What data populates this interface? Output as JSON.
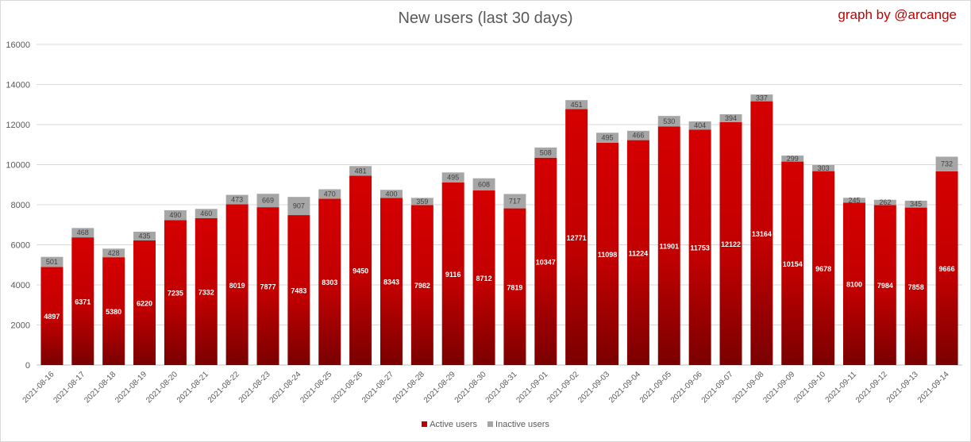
{
  "chart_data": {
    "type": "bar",
    "stacked": true,
    "title": "New users (last 30 days)",
    "credit": "graph by @arcange",
    "categories": [
      "2021-08-16",
      "2021-08-17",
      "2021-08-18",
      "2021-08-19",
      "2021-08-20",
      "2021-08-21",
      "2021-08-22",
      "2021-08-23",
      "2021-08-24",
      "2021-08-25",
      "2021-08-26",
      "2021-08-27",
      "2021-08-28",
      "2021-08-29",
      "2021-08-30",
      "2021-08-31",
      "2021-09-01",
      "2021-09-02",
      "2021-09-03",
      "2021-09-04",
      "2021-09-05",
      "2021-09-06",
      "2021-09-07",
      "2021-09-08",
      "2021-09-09",
      "2021-09-10",
      "2021-09-11",
      "2021-09-12",
      "2021-09-13",
      "2021-09-14"
    ],
    "series": [
      {
        "name": "Active users",
        "color": "#c00000",
        "values": [
          4897,
          6371,
          5380,
          6220,
          7235,
          7332,
          8019,
          7877,
          7483,
          8303,
          9450,
          8343,
          7982,
          9116,
          8712,
          7819,
          10347,
          12771,
          11098,
          11224,
          11901,
          11753,
          12122,
          13164,
          10154,
          9678,
          8100,
          7984,
          7858,
          9666
        ]
      },
      {
        "name": "Inactive users",
        "color": "#a6a6a6",
        "values": [
          501,
          468,
          428,
          435,
          490,
          460,
          473,
          669,
          907,
          470,
          481,
          400,
          359,
          495,
          608,
          717,
          508,
          451,
          495,
          466,
          530,
          404,
          394,
          337,
          299,
          303,
          245,
          262,
          345,
          732
        ]
      }
    ],
    "ylim": [
      0,
      16000
    ],
    "yticks": [
      0,
      2000,
      4000,
      6000,
      8000,
      10000,
      12000,
      14000,
      16000
    ],
    "xlabel": "",
    "ylabel": "",
    "grid": true,
    "legend": "bottom"
  }
}
